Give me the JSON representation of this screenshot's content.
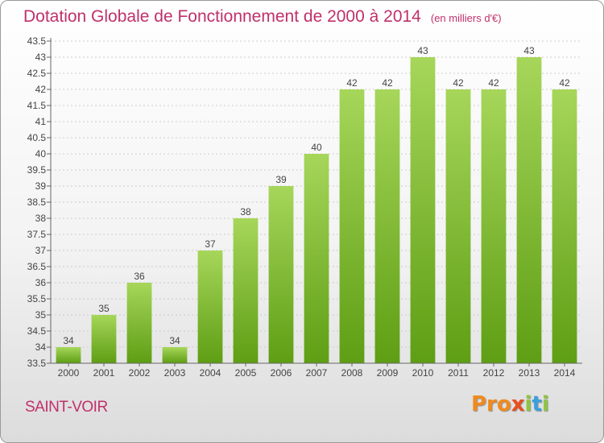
{
  "header": {
    "title": "Dotation Globale de Fonctionnement de 2000 à 2014",
    "unit": "(en milliers d'€)"
  },
  "commune": "SAINT-VOIR",
  "logo": {
    "text": "Proxiti"
  },
  "colors": {
    "title": "#c0306a",
    "bar_top": "#a6d65a",
    "bar_bottom": "#5e9e14",
    "grid": "#cccccc"
  },
  "chart_data": {
    "type": "bar",
    "categories": [
      "2000",
      "2001",
      "2002",
      "2003",
      "2004",
      "2005",
      "2006",
      "2007",
      "2008",
      "2009",
      "2010",
      "2011",
      "2012",
      "2013",
      "2014"
    ],
    "values": [
      34,
      35,
      36,
      34,
      37,
      38,
      39,
      40,
      42,
      42,
      43,
      42,
      42,
      43,
      42
    ],
    "data_labels": [
      "34",
      "35",
      "36",
      "34",
      "37",
      "38",
      "39",
      "40",
      "42",
      "42",
      "43",
      "42",
      "42",
      "43",
      "42"
    ],
    "title": "Dotation Globale de Fonctionnement de 2000 à 2014",
    "xlabel": "",
    "ylabel": "",
    "ylim": [
      33.5,
      43.5
    ],
    "yticks": [
      "33.5",
      "34",
      "34.5",
      "35",
      "35.5",
      "36",
      "36.5",
      "37",
      "37.5",
      "38",
      "38.5",
      "39",
      "39.5",
      "40",
      "40.5",
      "41",
      "41.5",
      "42",
      "42.5",
      "43",
      "43.5"
    ],
    "grid": true,
    "legend": "none"
  }
}
